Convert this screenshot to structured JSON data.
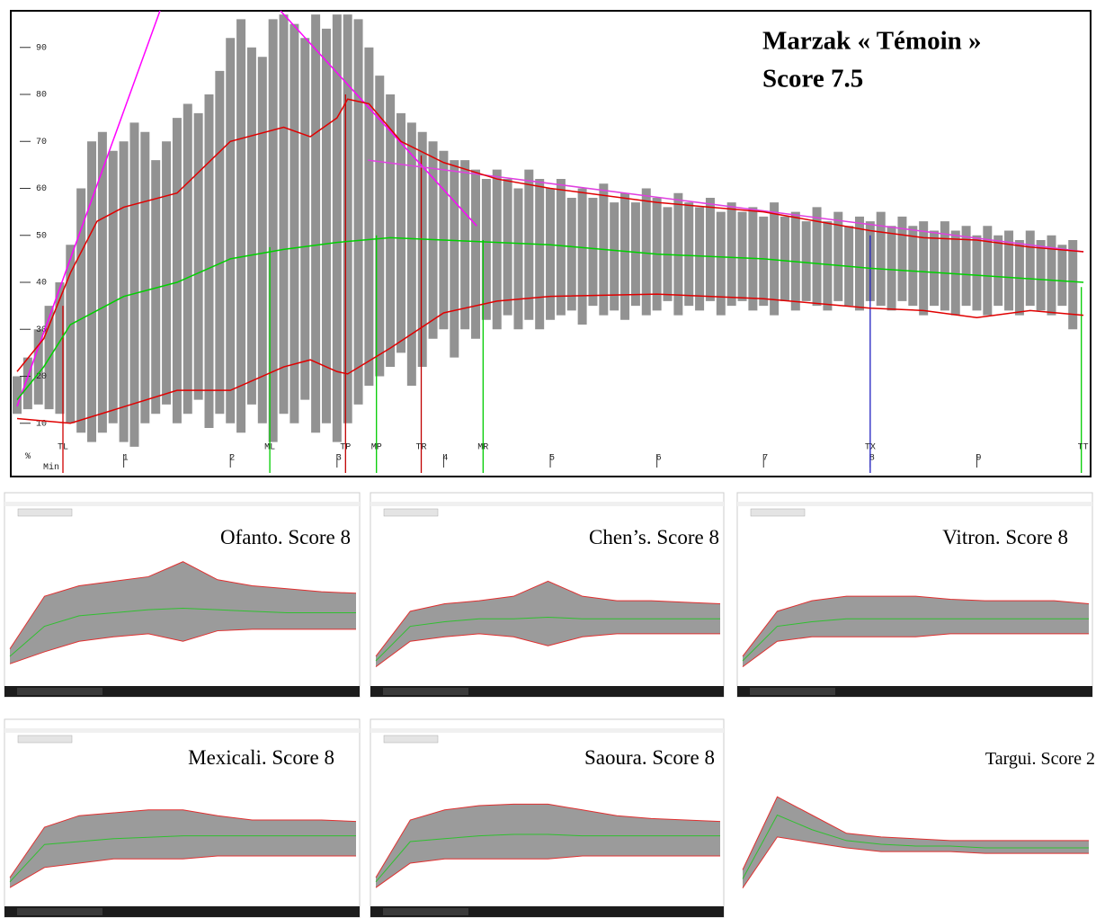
{
  "chart_data": {
    "type": "line",
    "title": "Marzak « Témoin »",
    "subtitle": "Score 7.5",
    "y_unit_label": "%",
    "x_unit_label": "Min",
    "xlim": [
      0,
      10.05
    ],
    "ylim": [
      0,
      97.8
    ],
    "yticks": [
      10,
      20,
      30,
      40,
      50,
      60,
      70,
      80,
      90
    ],
    "xticks": [
      1,
      2,
      3,
      4,
      5,
      6,
      7,
      8,
      9
    ],
    "trace": {
      "color": "#808080",
      "x": [
        0,
        0.1,
        0.2,
        0.3,
        0.4,
        0.5,
        0.6,
        0.7,
        0.8,
        0.9,
        1,
        1.1,
        1.2,
        1.3,
        1.4,
        1.5,
        1.6,
        1.7,
        1.8,
        1.9,
        2,
        2.1,
        2.2,
        2.3,
        2.4,
        2.5,
        2.6,
        2.7,
        2.8,
        2.9,
        3,
        3.1,
        3.2,
        3.3,
        3.4,
        3.5,
        3.6,
        3.7,
        3.8,
        3.9,
        4,
        4.1,
        4.2,
        4.3,
        4.4,
        4.5,
        4.6,
        4.7,
        4.8,
        4.9,
        5,
        5.1,
        5.2,
        5.3,
        5.4,
        5.5,
        5.6,
        5.7,
        5.8,
        5.9,
        6,
        6.1,
        6.2,
        6.3,
        6.4,
        6.5,
        6.6,
        6.7,
        6.8,
        6.9,
        7,
        7.1,
        7.2,
        7.3,
        7.4,
        7.5,
        7.6,
        7.7,
        7.8,
        7.9,
        8,
        8.1,
        8.2,
        8.3,
        8.4,
        8.5,
        8.6,
        8.7,
        8.8,
        8.9,
        9,
        9.1,
        9.2,
        9.3,
        9.4,
        9.5,
        9.6,
        9.7,
        9.8,
        9.9
      ],
      "low": [
        12,
        13,
        14,
        13,
        12,
        10,
        8,
        6,
        8,
        10,
        6,
        5,
        10,
        12,
        14,
        10,
        12,
        15,
        9,
        12,
        10,
        8,
        14,
        10,
        6,
        12,
        10,
        15,
        8,
        10,
        6,
        10,
        14,
        18,
        20,
        22,
        25,
        18,
        22,
        28,
        30,
        24,
        30,
        28,
        32,
        30,
        33,
        30,
        32,
        30,
        32,
        33,
        34,
        31,
        35,
        33,
        34,
        32,
        35,
        33,
        34,
        36,
        33,
        35,
        34,
        36,
        33,
        35,
        36,
        34,
        35,
        33,
        36,
        34,
        36,
        35,
        34,
        36,
        35,
        34,
        36,
        35,
        34,
        36,
        35,
        33,
        35,
        34,
        33,
        35,
        34,
        33,
        35,
        34,
        33,
        35,
        34,
        33,
        35,
        30
      ],
      "high": [
        20,
        24,
        30,
        35,
        40,
        48,
        60,
        70,
        72,
        68,
        70,
        74,
        72,
        66,
        70,
        75,
        78,
        76,
        80,
        85,
        92,
        96,
        90,
        88,
        96,
        97,
        95,
        92,
        97,
        94,
        97,
        97,
        96,
        90,
        84,
        80,
        76,
        74,
        72,
        70,
        68,
        66,
        66,
        64,
        62,
        64,
        62,
        60,
        64,
        62,
        60,
        62,
        58,
        60,
        58,
        61,
        57,
        59,
        57,
        60,
        58,
        56,
        59,
        57,
        56,
        58,
        55,
        57,
        55,
        56,
        54,
        57,
        54,
        55,
        53,
        56,
        53,
        55,
        52,
        54,
        53,
        55,
        52,
        54,
        52,
        53,
        51,
        53,
        51,
        52,
        50,
        52,
        50,
        51,
        49,
        51,
        49,
        50,
        48,
        49
      ]
    },
    "series": [
      {
        "color": "#e00000",
        "x": [
          0,
          0.25,
          0.5,
          0.75,
          1,
          1.5,
          2,
          2.5,
          2.75,
          3,
          3.1,
          3.3,
          3.6,
          4,
          4.5,
          5,
          6,
          7,
          7.5,
          8,
          8.5,
          9,
          9.5,
          10
        ],
        "values": [
          21,
          28,
          42,
          53,
          56,
          59,
          70,
          73,
          71,
          75,
          79,
          78,
          70,
          65.5,
          62,
          60,
          57,
          55,
          53,
          51,
          49.5,
          49,
          47.5,
          46.5
        ]
      },
      {
        "color": "#00d000",
        "x": [
          0,
          0.25,
          0.5,
          1,
          1.5,
          2,
          2.5,
          3,
          3.5,
          4,
          5,
          6,
          7,
          8,
          9,
          10
        ],
        "values": [
          15,
          22,
          31,
          37,
          40,
          45,
          47,
          48.5,
          49.5,
          49,
          48,
          46,
          45,
          43,
          41.5,
          40
        ]
      },
      {
        "color": "#e00000",
        "x": [
          0,
          0.5,
          1,
          1.5,
          2,
          2.5,
          2.75,
          3,
          3.1,
          3.5,
          4,
          4.5,
          5,
          6,
          7,
          8,
          8.5,
          9,
          9.5,
          10
        ],
        "values": [
          11,
          10,
          13.5,
          17,
          17,
          22,
          23.5,
          21,
          20.5,
          26,
          33.5,
          36,
          37,
          37.5,
          36.5,
          34.5,
          34,
          32.5,
          34,
          33
        ]
      }
    ],
    "guides": [
      {
        "color": "#ff00ff",
        "x": [
          0,
          1.34
        ],
        "values": [
          13.6,
          97.8
        ]
      },
      {
        "color": "#ff00ff",
        "x": [
          2.47,
          4.31
        ],
        "values": [
          97.8,
          52
        ]
      },
      {
        "color": "#e040e0",
        "x": [
          3.29,
          10
        ],
        "values": [
          66,
          46.5
        ]
      }
    ],
    "markers": [
      {
        "label": "TL",
        "x": 0.43,
        "value": 35,
        "color": "#d00000"
      },
      {
        "label": "ML",
        "x": 2.37,
        "value": 47.5,
        "color": "#00cc00"
      },
      {
        "label": "TP",
        "x": 3.08,
        "value": 80,
        "color": "#c00000"
      },
      {
        "label": "MP",
        "x": 3.37,
        "value": 50,
        "color": "#00cc00"
      },
      {
        "label": "TR",
        "x": 3.79,
        "value": 67,
        "color": "#c00000"
      },
      {
        "label": "MR",
        "x": 4.37,
        "value": 49,
        "color": "#00cc00"
      },
      {
        "label": "TX",
        "x": 8.0,
        "value": 50,
        "color": "#2020c0"
      },
      {
        "label": "TT",
        "x": 9.98,
        "value": 39,
        "color": "#00cc00"
      }
    ]
  },
  "thumbnails": [
    {
      "caption": "Ofanto. Score 8",
      "window": true,
      "xlim": [
        0,
        10
      ],
      "ylim": [
        0,
        100
      ],
      "x": [
        0,
        1,
        2,
        3,
        4,
        5,
        6,
        7,
        8,
        9,
        10
      ],
      "upper": [
        20,
        55,
        62,
        65,
        68,
        78,
        66,
        62,
        60,
        58,
        57
      ],
      "mid": [
        15,
        35,
        42,
        44,
        46,
        47,
        46,
        45,
        44,
        44,
        44
      ],
      "lower": [
        10,
        18,
        25,
        28,
        30,
        25,
        32,
        33,
        33,
        33,
        33
      ]
    },
    {
      "caption": "Chen’s. Score 8",
      "window": true,
      "xlim": [
        0,
        10
      ],
      "ylim": [
        0,
        100
      ],
      "x": [
        0,
        1,
        2,
        3,
        4,
        5,
        6,
        7,
        8,
        9,
        10
      ],
      "upper": [
        15,
        45,
        50,
        52,
        55,
        65,
        55,
        52,
        52,
        51,
        50
      ],
      "mid": [
        12,
        35,
        38,
        40,
        40,
        41,
        40,
        40,
        40,
        40,
        40
      ],
      "lower": [
        8,
        25,
        28,
        30,
        28,
        22,
        28,
        30,
        30,
        30,
        30
      ]
    },
    {
      "caption": "Vitron. Score 8",
      "window": true,
      "xlim": [
        0,
        10
      ],
      "ylim": [
        0,
        100
      ],
      "x": [
        0,
        1,
        2,
        3,
        4,
        5,
        6,
        7,
        8,
        9,
        10
      ],
      "upper": [
        15,
        45,
        52,
        55,
        55,
        55,
        53,
        52,
        52,
        52,
        50
      ],
      "mid": [
        12,
        35,
        38,
        40,
        40,
        40,
        40,
        40,
        40,
        40,
        40
      ],
      "lower": [
        8,
        25,
        28,
        28,
        28,
        28,
        30,
        30,
        30,
        30,
        30
      ]
    },
    {
      "caption": "Mexicali. Score 8",
      "window": true,
      "xlim": [
        0,
        10
      ],
      "ylim": [
        0,
        100
      ],
      "x": [
        0,
        1,
        2,
        3,
        4,
        5,
        6,
        7,
        8,
        9,
        10
      ],
      "upper": [
        15,
        50,
        58,
        60,
        62,
        62,
        58,
        55,
        55,
        55,
        54
      ],
      "mid": [
        12,
        38,
        40,
        42,
        43,
        44,
        44,
        44,
        44,
        44,
        44
      ],
      "lower": [
        8,
        22,
        25,
        28,
        28,
        28,
        30,
        30,
        30,
        30,
        30
      ]
    },
    {
      "caption": "Saoura. Score 8",
      "window": true,
      "xlim": [
        0,
        10
      ],
      "ylim": [
        0,
        100
      ],
      "x": [
        0,
        1,
        2,
        3,
        4,
        5,
        6,
        7,
        8,
        9,
        10
      ],
      "upper": [
        15,
        55,
        62,
        65,
        66,
        66,
        62,
        58,
        56,
        55,
        54
      ],
      "mid": [
        12,
        40,
        42,
        44,
        45,
        45,
        44,
        44,
        44,
        44,
        44
      ],
      "lower": [
        8,
        25,
        28,
        28,
        28,
        28,
        30,
        30,
        30,
        30,
        30
      ]
    },
    {
      "caption": "Targui. Score 2",
      "window": false,
      "xlim": [
        0,
        10
      ],
      "ylim": [
        0,
        100
      ],
      "x": [
        0,
        1,
        2,
        3,
        4,
        5,
        6,
        7,
        8,
        9,
        10
      ],
      "upper": [
        20,
        60,
        50,
        40,
        38,
        37,
        36,
        36,
        36,
        36,
        36
      ],
      "mid": [
        15,
        50,
        42,
        36,
        34,
        33,
        33,
        32,
        32,
        32,
        32
      ],
      "lower": [
        10,
        38,
        35,
        32,
        30,
        30,
        30,
        29,
        29,
        29,
        29
      ]
    }
  ]
}
